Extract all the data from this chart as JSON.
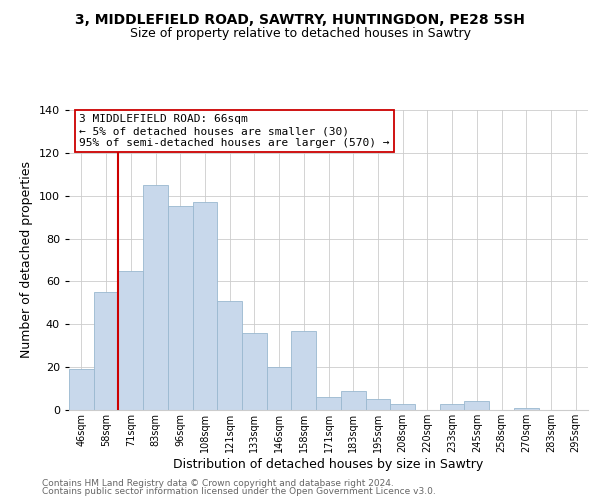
{
  "title": "3, MIDDLEFIELD ROAD, SAWTRY, HUNTINGDON, PE28 5SH",
  "subtitle": "Size of property relative to detached houses in Sawtry",
  "xlabel": "Distribution of detached houses by size in Sawtry",
  "ylabel": "Number of detached properties",
  "bin_labels": [
    "46sqm",
    "58sqm",
    "71sqm",
    "83sqm",
    "96sqm",
    "108sqm",
    "121sqm",
    "133sqm",
    "146sqm",
    "158sqm",
    "171sqm",
    "183sqm",
    "195sqm",
    "208sqm",
    "220sqm",
    "233sqm",
    "245sqm",
    "258sqm",
    "270sqm",
    "283sqm",
    "295sqm"
  ],
  "bar_heights": [
    19,
    55,
    65,
    105,
    95,
    97,
    51,
    36,
    20,
    37,
    6,
    9,
    5,
    3,
    0,
    3,
    4,
    0,
    1,
    0,
    0
  ],
  "bar_color": "#c8d8eb",
  "bar_edge_color": "#9ab8d0",
  "ylim": [
    0,
    140
  ],
  "yticks": [
    0,
    20,
    40,
    60,
    80,
    100,
    120,
    140
  ],
  "vline_color": "#cc0000",
  "annotation_line1": "3 MIDDLEFIELD ROAD: 66sqm",
  "annotation_line2": "← 5% of detached houses are smaller (30)",
  "annotation_line3": "95% of semi-detached houses are larger (570) →",
  "annotation_box_color": "#ffffff",
  "annotation_box_edge": "#cc0000",
  "footer1": "Contains HM Land Registry data © Crown copyright and database right 2024.",
  "footer2": "Contains public sector information licensed under the Open Government Licence v3.0.",
  "title_fontsize": 10,
  "subtitle_fontsize": 9,
  "ylabel_fontsize": 9,
  "xlabel_fontsize": 9,
  "footer_fontsize": 6.5,
  "footer_color": "#666666"
}
